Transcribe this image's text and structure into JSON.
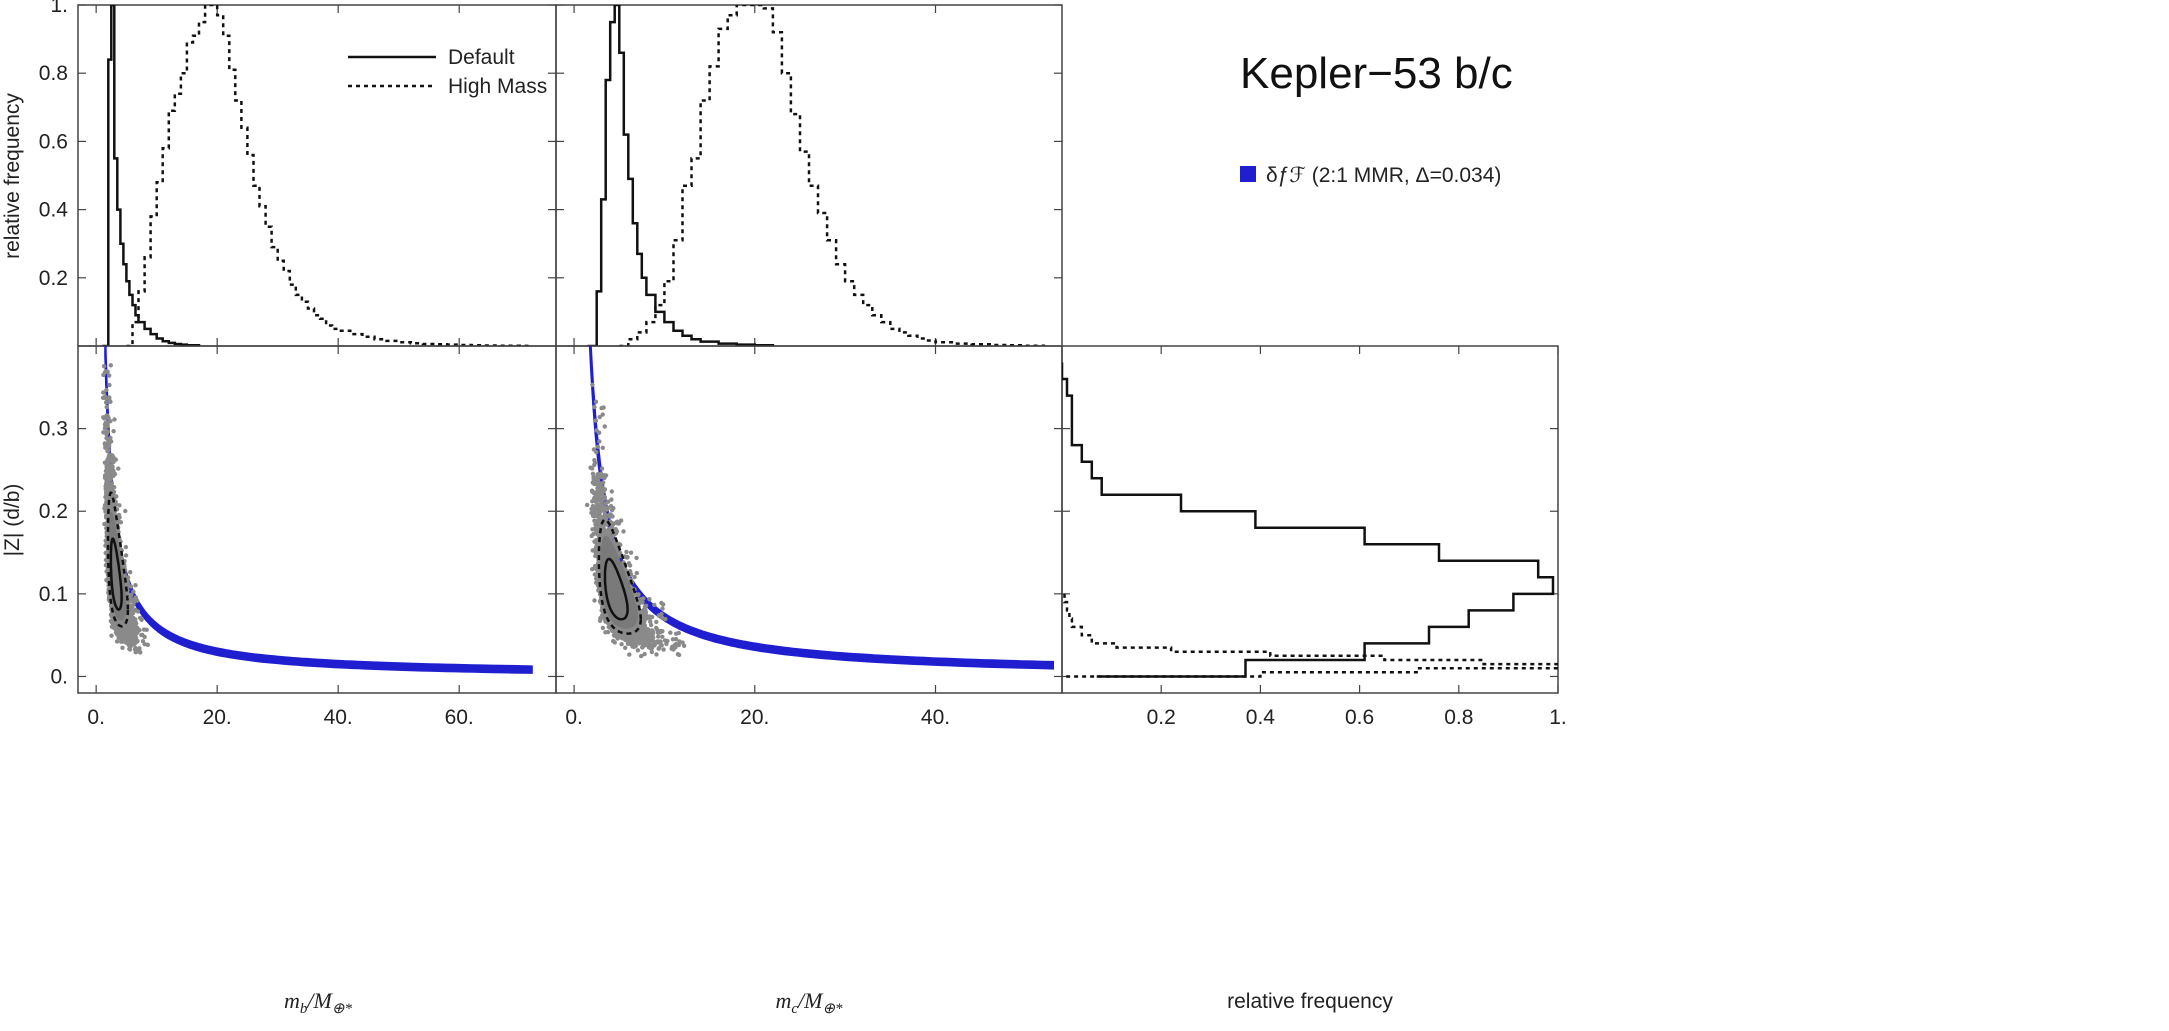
{
  "figure": {
    "title": "Kepler−53 b/c",
    "legend_blue": "δƒℱ (2:1 MMR, Δ=0.034)",
    "legend_default": "Default",
    "legend_high_mass": "High Mass"
  },
  "chart_data": [
    {
      "id": "hist-mb",
      "type": "line",
      "title": "",
      "xlabel": "m_b/M⊕*",
      "ylabel": "relative frequency",
      "xlim": [
        -3,
        76
      ],
      "ylim": [
        0,
        1.0
      ],
      "yticks": [
        0.2,
        0.4,
        0.6,
        0.8,
        1.0
      ],
      "ytick_labels": [
        "0.2",
        "0.4",
        "0.6",
        "0.8",
        "1."
      ],
      "grid": false,
      "legend_position": "top-center",
      "series": [
        {
          "name": "Default",
          "style": "solid",
          "x": [
            1,
            2,
            2.5,
            3,
            3.5,
            4,
            4.5,
            5,
            5.5,
            6,
            6.5,
            7,
            8,
            9,
            10,
            11,
            12,
            13,
            14,
            15,
            17
          ],
          "y": [
            0,
            0.84,
            1.0,
            0.55,
            0.4,
            0.3,
            0.24,
            0.19,
            0.15,
            0.12,
            0.09,
            0.07,
            0.05,
            0.035,
            0.022,
            0.014,
            0.009,
            0.006,
            0.004,
            0.002,
            0.0
          ]
        },
        {
          "name": "High Mass",
          "style": "dashed",
          "x": [
            5,
            6,
            7,
            8,
            9,
            10,
            11,
            12,
            13,
            14,
            15,
            16,
            17,
            18,
            19,
            20,
            21,
            22,
            23,
            24,
            25,
            26,
            27,
            28,
            29,
            30,
            31,
            32,
            33,
            34,
            35,
            36,
            37,
            38,
            39,
            40,
            42,
            44,
            46,
            48,
            50,
            52,
            54,
            56,
            58,
            60,
            62,
            64,
            66,
            68,
            70,
            72
          ],
          "y": [
            0,
            0.07,
            0.16,
            0.26,
            0.38,
            0.48,
            0.58,
            0.69,
            0.74,
            0.8,
            0.89,
            0.91,
            0.95,
            1.0,
            1.0,
            0.97,
            0.91,
            0.81,
            0.72,
            0.64,
            0.56,
            0.47,
            0.41,
            0.35,
            0.29,
            0.25,
            0.22,
            0.18,
            0.15,
            0.13,
            0.11,
            0.09,
            0.08,
            0.06,
            0.05,
            0.045,
            0.035,
            0.027,
            0.02,
            0.015,
            0.011,
            0.008,
            0.006,
            0.005,
            0.004,
            0.003,
            0.002,
            0.0015,
            0.001,
            0.0006,
            0.0003,
            0.0
          ]
        }
      ]
    },
    {
      "id": "hist-mc",
      "type": "line",
      "title": "",
      "xlabel": "m_c/M⊕*",
      "ylabel": "",
      "xlim": [
        -2,
        54
      ],
      "ylim": [
        0,
        1.0
      ],
      "grid": false,
      "series": [
        {
          "name": "Default",
          "style": "solid",
          "x": [
            1.5,
            2.5,
            3,
            3.5,
            4,
            4.5,
            5,
            5.5,
            6,
            6.5,
            7,
            7.5,
            8,
            9,
            10,
            11,
            12,
            13,
            14,
            16,
            18,
            20,
            22
          ],
          "y": [
            0,
            0.16,
            0.43,
            0.78,
            0.95,
            1.0,
            0.86,
            0.62,
            0.49,
            0.36,
            0.27,
            0.2,
            0.15,
            0.1,
            0.07,
            0.045,
            0.03,
            0.02,
            0.013,
            0.007,
            0.004,
            0.002,
            0.0
          ]
        },
        {
          "name": "High Mass",
          "style": "dashed",
          "x": [
            5,
            6,
            7,
            8,
            9,
            10,
            11,
            12,
            13,
            14,
            15,
            16,
            17,
            18,
            19,
            20,
            21,
            22,
            23,
            24,
            25,
            26,
            27,
            28,
            29,
            30,
            31,
            32,
            33,
            34,
            35,
            36,
            37,
            38,
            39,
            40,
            42,
            44,
            46,
            48,
            50,
            52
          ],
          "y": [
            0,
            0.02,
            0.04,
            0.07,
            0.12,
            0.19,
            0.31,
            0.47,
            0.55,
            0.72,
            0.82,
            0.93,
            0.97,
            1.0,
            1.0,
            1.0,
            0.99,
            0.92,
            0.8,
            0.68,
            0.57,
            0.47,
            0.39,
            0.31,
            0.24,
            0.19,
            0.15,
            0.12,
            0.09,
            0.07,
            0.05,
            0.04,
            0.03,
            0.022,
            0.016,
            0.011,
            0.007,
            0.005,
            0.003,
            0.002,
            0.001,
            0.0
          ]
        }
      ]
    },
    {
      "id": "scatter-mb-z",
      "type": "scatter",
      "title": "",
      "xlabel": "m_b/M⊕*",
      "ylabel": "|Z| (d/b)",
      "xlim": [
        -3,
        76
      ],
      "ylim": [
        -0.02,
        0.4
      ],
      "xticks": [
        0,
        20,
        40,
        60
      ],
      "xtick_labels": [
        "0.",
        "20.",
        "40.",
        "60."
      ],
      "yticks": [
        0,
        0.1,
        0.2,
        0.3
      ],
      "ytick_labels": [
        "0.",
        "0.1",
        "0.2",
        "0.3"
      ],
      "band": {
        "name": "δƒℱ (2:1 MMR, Δ=0.034)",
        "color": "#1f1fd0",
        "k": 0.6,
        "x_from": 1.5,
        "x_to": 72,
        "width": 0.004
      },
      "default_mode": {
        "x": 3.2,
        "y": 0.11
      },
      "high_mass_mode": {
        "x": 18,
        "y": 0.035
      }
    },
    {
      "id": "scatter-mc-z",
      "type": "scatter",
      "title": "",
      "xlabel": "m_c/M⊕*",
      "ylabel": "",
      "xlim": [
        -2,
        54
      ],
      "ylim": [
        -0.02,
        0.4
      ],
      "xticks": [
        0,
        20,
        40
      ],
      "xtick_labels": [
        "0.",
        "20.",
        "40."
      ],
      "band": {
        "name": "δƒℱ (2:1 MMR, Δ=0.034)",
        "color": "#1f1fd0",
        "k": 0.72,
        "x_from": 1.5,
        "x_to": 53,
        "width": 0.004
      },
      "default_mode": {
        "x": 4.5,
        "y": 0.11
      },
      "high_mass_mode": {
        "x": 18,
        "y": 0.035
      }
    },
    {
      "id": "hist-z",
      "type": "line",
      "title": "",
      "xlabel": "relative frequency",
      "ylabel": "",
      "xlim": [
        0,
        1.0
      ],
      "ylim": [
        -0.02,
        0.4
      ],
      "xticks": [
        0.2,
        0.4,
        0.6,
        0.8,
        1.0
      ],
      "xtick_labels": [
        "0.2",
        "0.4",
        "0.6",
        "0.8",
        "1."
      ],
      "series": [
        {
          "name": "Default",
          "style": "solid",
          "z": [
            0.38,
            0.36,
            0.34,
            0.32,
            0.3,
            0.28,
            0.26,
            0.24,
            0.22,
            0.2,
            0.18,
            0.16,
            0.14,
            0.12,
            0.1,
            0.08,
            0.06,
            0.04,
            0.02,
            0.0
          ],
          "freq": [
            0.0,
            0.01,
            0.02,
            0.02,
            0.02,
            0.04,
            0.06,
            0.08,
            0.24,
            0.39,
            0.61,
            0.76,
            0.96,
            0.99,
            0.91,
            0.82,
            0.74,
            0.61,
            0.37,
            0.07
          ]
        },
        {
          "name": "High Mass",
          "style": "dashed",
          "z": [
            0.1,
            0.09,
            0.08,
            0.07,
            0.06,
            0.05,
            0.04,
            0.035,
            0.03,
            0.025,
            0.02,
            0.015,
            0.01,
            0.005,
            0.0
          ],
          "freq": [
            0.005,
            0.01,
            0.015,
            0.02,
            0.04,
            0.06,
            0.11,
            0.22,
            0.42,
            0.65,
            0.85,
            1.0,
            0.72,
            0.4,
            0.0
          ]
        }
      ]
    }
  ]
}
